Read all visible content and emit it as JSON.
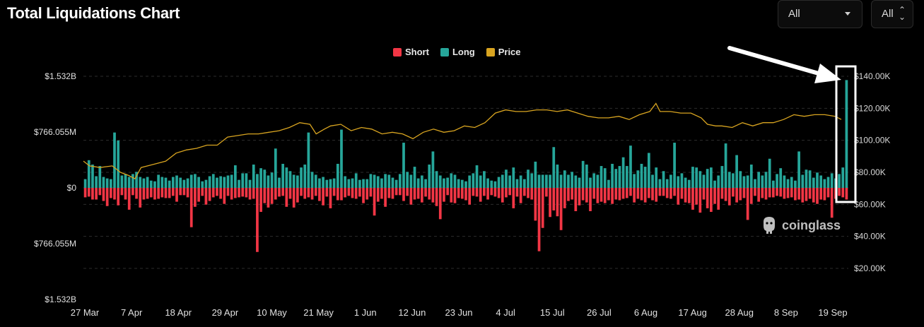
{
  "header": {
    "title": "Total Liquidations Chart"
  },
  "controls": {
    "range_select": {
      "value": "All"
    },
    "coin_select": {
      "value": "All"
    }
  },
  "watermark": {
    "text": "coinglass",
    "icon": "coinglass-logo-icon"
  },
  "colors": {
    "short": "#f23645",
    "long": "#26a69a",
    "price": "#d8a420",
    "annotation": "#ffffff"
  },
  "chart_data": {
    "type": "bar",
    "legend": {
      "position": "top-center",
      "entries": [
        {
          "name": "Short",
          "color": "#f23645"
        },
        {
          "name": "Long",
          "color": "#26a69a"
        },
        {
          "name": "Price",
          "color": "#d8a420"
        }
      ]
    },
    "x_tick_labels": [
      "27 Mar",
      "7 Apr",
      "18 Apr",
      "29 Apr",
      "10 May",
      "21 May",
      "1 Jun",
      "12 Jun",
      "23 Jun",
      "4 Jul",
      "15 Jul",
      "26 Jul",
      "6 Aug",
      "17 Aug",
      "28 Aug",
      "8 Sep",
      "19 Sep"
    ],
    "y_left_tick_labels": [
      "$1.532B",
      "$766.055M",
      "$0",
      "$766.055M",
      "$1.532B"
    ],
    "y_left_ticks": [
      1532,
      766.055,
      0,
      -766.055,
      -1532
    ],
    "y_left_range_musd": [
      -1532,
      1532
    ],
    "y_right_tick_labels": [
      "$140.00K",
      "$120.00K",
      "$100.00K",
      "$80.00K",
      "$60.00K",
      "$40.00K",
      "$20.00K"
    ],
    "y_right_ticks": [
      140000,
      120000,
      100000,
      80000,
      60000,
      40000,
      20000
    ],
    "y_right_range": [
      0,
      140000
    ],
    "grid": true,
    "series": [
      {
        "name": "Long",
        "unit": "USD millions (above zero)",
        "values": [
          120,
          380,
          320,
          160,
          300,
          150,
          130,
          120,
          760,
          650,
          170,
          190,
          150,
          190,
          220,
          150,
          130,
          150,
          100,
          90,
          180,
          150,
          140,
          100,
          150,
          170,
          140,
          110,
          130,
          180,
          190,
          150,
          90,
          110,
          160,
          190,
          140,
          160,
          150,
          170,
          180,
          310,
          110,
          200,
          200,
          110,
          320,
          190,
          270,
          250,
          170,
          210,
          540,
          140,
          330,
          280,
          230,
          180,
          170,
          280,
          320,
          760,
          220,
          180,
          130,
          150,
          110,
          120,
          130,
          330,
          800,
          160,
          120,
          130,
          200,
          110,
          120,
          120,
          190,
          180,
          160,
          130,
          190,
          180,
          140,
          110,
          190,
          620,
          220,
          180,
          290,
          130,
          170,
          120,
          320,
          500,
          230,
          170,
          130,
          140,
          200,
          180,
          120,
          110,
          90,
          170,
          200,
          310,
          170,
          230,
          130,
          100,
          90,
          150,
          180,
          250,
          170,
          280,
          120,
          170,
          120,
          250,
          200,
          360,
          180,
          180,
          180,
          180,
          560,
          320,
          180,
          240,
          180,
          220,
          170,
          140,
          370,
          320,
          140,
          200,
          180,
          300,
          270,
          110,
          330,
          260,
          300,
          420,
          300,
          580,
          190,
          240,
          330,
          290,
          480,
          180,
          280,
          120,
          230,
          120,
          180,
          620,
          160,
          200,
          140,
          110,
          290,
          280,
          230,
          180,
          260,
          280,
          100,
          170,
          300,
          610,
          220,
          200,
          450,
          230,
          160,
          170,
          320,
          120,
          220,
          170,
          220,
          400,
          100,
          190,
          270,
          170,
          120,
          150,
          100,
          500,
          180,
          250,
          240,
          140,
          210,
          170,
          120,
          150,
          200,
          130,
          190,
          280,
          1480
        ]
      },
      {
        "name": "Short",
        "unit": "USD millions (below zero)",
        "values": [
          130,
          120,
          160,
          160,
          100,
          180,
          250,
          140,
          160,
          240,
          100,
          160,
          300,
          100,
          150,
          270,
          160,
          150,
          130,
          160,
          150,
          130,
          140,
          140,
          110,
          190,
          100,
          100,
          130,
          540,
          260,
          190,
          110,
          230,
          180,
          130,
          110,
          150,
          220,
          110,
          160,
          140,
          130,
          120,
          130,
          160,
          150,
          880,
          330,
          210,
          270,
          220,
          160,
          120,
          110,
          260,
          150,
          270,
          200,
          110,
          150,
          130,
          160,
          110,
          180,
          240,
          120,
          280,
          110,
          170,
          170,
          130,
          110,
          140,
          150,
          120,
          210,
          160,
          120,
          380,
          190,
          150,
          260,
          140,
          150,
          100,
          100,
          180,
          110,
          230,
          160,
          150,
          200,
          120,
          160,
          200,
          250,
          430,
          190,
          100,
          200,
          210,
          140,
          150,
          170,
          230,
          110,
          120,
          190,
          110,
          160,
          100,
          120,
          140,
          200,
          130,
          100,
          280,
          120,
          210,
          110,
          140,
          160,
          450,
          870,
          550,
          120,
          400,
          310,
          390,
          580,
          280,
          180,
          160,
          320,
          240,
          170,
          200,
          320,
          150,
          210,
          190,
          210,
          170,
          220,
          160,
          170,
          150,
          140,
          110,
          200,
          150,
          170,
          200,
          140,
          170,
          190,
          110,
          110,
          140,
          150,
          110,
          230,
          150,
          200,
          210,
          300,
          230,
          340,
          160,
          280,
          330,
          220,
          300,
          150,
          180,
          240,
          120,
          200,
          170,
          140,
          440,
          220,
          110,
          190,
          140,
          160,
          130,
          130,
          110,
          120,
          150,
          140,
          130,
          170,
          160,
          200,
          180,
          150,
          200,
          220,
          160,
          170,
          130,
          410,
          150,
          110,
          130,
          160,
          170,
          200,
          150,
          140
        ]
      },
      {
        "name": "Price",
        "unit": "USD",
        "points": [
          [
            0,
            87000
          ],
          [
            3,
            84000
          ],
          [
            8,
            83000
          ],
          [
            14,
            84000
          ],
          [
            18,
            80000
          ],
          [
            22,
            78000
          ],
          [
            25,
            76000
          ],
          [
            28,
            83000
          ],
          [
            34,
            85000
          ],
          [
            40,
            87000
          ],
          [
            45,
            92000
          ],
          [
            50,
            94000
          ],
          [
            55,
            95000
          ],
          [
            60,
            97000
          ],
          [
            65,
            97000
          ],
          [
            70,
            102000
          ],
          [
            75,
            103000
          ],
          [
            80,
            104000
          ],
          [
            85,
            104000
          ],
          [
            90,
            105000
          ],
          [
            95,
            106000
          ],
          [
            100,
            108000
          ],
          [
            105,
            111000
          ],
          [
            110,
            110000
          ],
          [
            113,
            104000
          ],
          [
            117,
            107000
          ],
          [
            120,
            109000
          ],
          [
            125,
            110000
          ],
          [
            130,
            106000
          ],
          [
            135,
            108000
          ],
          [
            140,
            107000
          ],
          [
            145,
            104000
          ],
          [
            150,
            105000
          ],
          [
            155,
            104000
          ],
          [
            160,
            101000
          ],
          [
            165,
            105000
          ],
          [
            170,
            107000
          ],
          [
            175,
            105000
          ],
          [
            180,
            106000
          ],
          [
            185,
            109000
          ],
          [
            190,
            108000
          ],
          [
            195,
            111000
          ],
          [
            200,
            117000
          ],
          [
            205,
            119000
          ],
          [
            210,
            118000
          ],
          [
            215,
            118000
          ],
          [
            220,
            119000
          ],
          [
            225,
            119000
          ],
          [
            230,
            118000
          ],
          [
            235,
            119000
          ],
          [
            240,
            117000
          ],
          [
            245,
            115000
          ],
          [
            250,
            114000
          ],
          [
            255,
            114000
          ],
          [
            260,
            115000
          ],
          [
            265,
            113000
          ],
          [
            270,
            116000
          ],
          [
            275,
            118000
          ],
          [
            278,
            123000
          ],
          [
            280,
            118000
          ],
          [
            285,
            118000
          ],
          [
            290,
            117000
          ],
          [
            295,
            117000
          ],
          [
            300,
            114000
          ],
          [
            303,
            110000
          ],
          [
            307,
            109000
          ],
          [
            310,
            109000
          ],
          [
            315,
            108000
          ],
          [
            320,
            111000
          ],
          [
            325,
            109000
          ],
          [
            330,
            111000
          ],
          [
            335,
            111000
          ],
          [
            340,
            113000
          ],
          [
            345,
            116000
          ],
          [
            350,
            115000
          ],
          [
            355,
            116000
          ],
          [
            360,
            116000
          ],
          [
            365,
            115000
          ],
          [
            368,
            113000
          ]
        ],
        "x_domain": [
          0,
          368
        ]
      }
    ]
  }
}
